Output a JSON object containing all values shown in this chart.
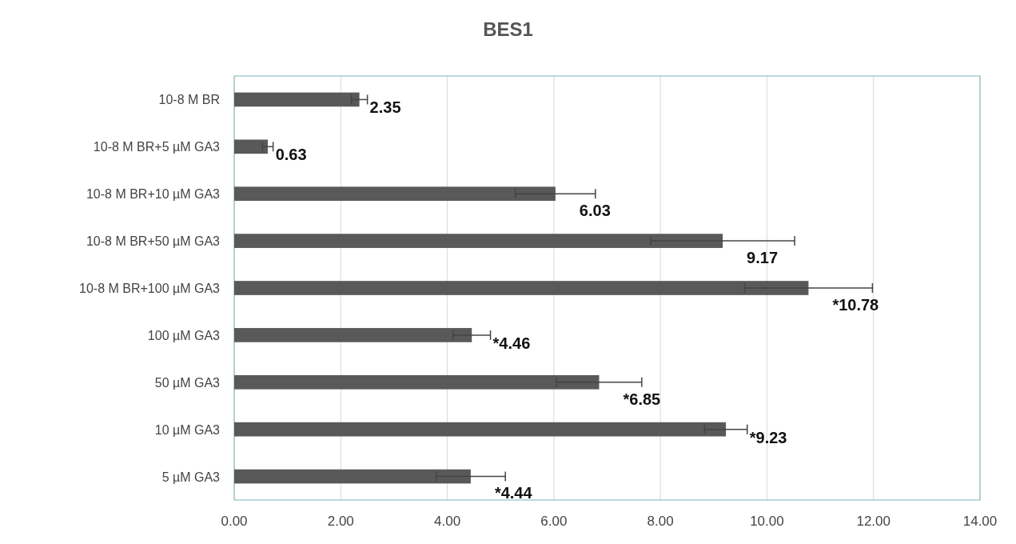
{
  "chart_data": {
    "type": "bar",
    "title": "BES1",
    "orientation": "horizontal",
    "categories": [
      "10-8 M BR",
      "10-8 M BR+5 µM GA3",
      "10-8 M BR+10 µM GA3",
      "10-8 M BR+50 µM GA3",
      "10-8 M BR+100 µM GA3",
      "100 µM GA3",
      "50 µM GA3",
      "10 µM GA3",
      "5 µM GA3"
    ],
    "values": [
      2.35,
      0.63,
      6.03,
      9.17,
      10.78,
      4.46,
      6.85,
      9.23,
      4.44
    ],
    "errors": [
      0.15,
      0.1,
      0.75,
      1.35,
      1.2,
      0.35,
      0.8,
      0.4,
      0.65
    ],
    "value_labels": [
      "2.35",
      "0.63",
      "6.03",
      "9.17",
      "*10.78",
      "*4.46",
      "*6.85",
      "*9.23",
      "*4.44"
    ],
    "color": "#595959",
    "xlim": [
      0,
      14
    ],
    "xticks": [
      {
        "value": 0,
        "label": "0.00"
      },
      {
        "value": 2,
        "label": "2.00"
      },
      {
        "value": 4,
        "label": "4.00"
      },
      {
        "value": 6,
        "label": "6.00"
      },
      {
        "value": 8,
        "label": "8.00"
      },
      {
        "value": 10,
        "label": "10.00"
      },
      {
        "value": 12,
        "label": "12.00"
      },
      {
        "value": 14,
        "label": "14.00"
      }
    ],
    "grid": "x"
  }
}
